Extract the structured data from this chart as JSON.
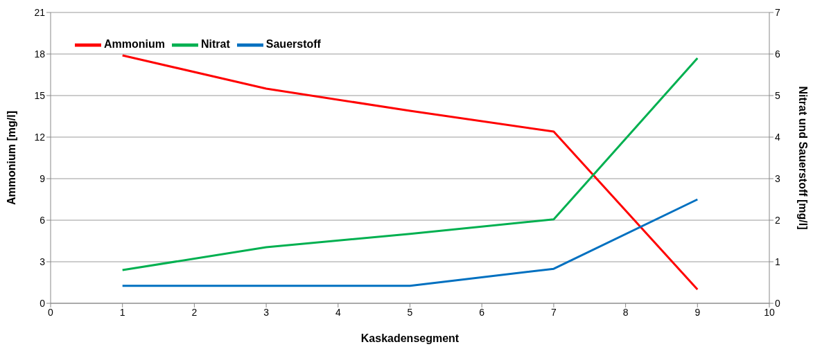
{
  "chart_data": {
    "type": "line",
    "xlabel": "Kaskadensegment",
    "ylabel": "Ammonium [mg/l]",
    "y2label": "Nitrat und Sauerstoff [mg/l]",
    "x": [
      1,
      3,
      5,
      7,
      9
    ],
    "series": [
      {
        "name": "Ammonium",
        "color": "#ff0000",
        "values": [
          17.9,
          15.5,
          13.9,
          12.4,
          1.0
        ]
      },
      {
        "name": "Nitrat",
        "color": "#00b050",
        "axis": "y2",
        "values": [
          0.8,
          1.35,
          1.67,
          2.02,
          5.9
        ]
      },
      {
        "name": "Sauerstoff",
        "color": "#0070c0",
        "axis": "y2",
        "values": [
          0.42,
          0.42,
          0.42,
          0.83,
          2.5
        ]
      }
    ],
    "xlim": [
      0,
      10
    ],
    "xticks": [
      0,
      1,
      2,
      3,
      4,
      5,
      6,
      7,
      8,
      9,
      10
    ],
    "ylim": [
      0,
      21
    ],
    "yticks": [
      0,
      3,
      6,
      9,
      12,
      15,
      18,
      21
    ],
    "y2lim": [
      0,
      7
    ],
    "y2ticks": [
      0,
      1,
      2,
      3,
      4,
      5,
      6,
      7
    ],
    "grid": "y",
    "legend": "top left",
    "marker": "none",
    "line_style": "solid"
  }
}
